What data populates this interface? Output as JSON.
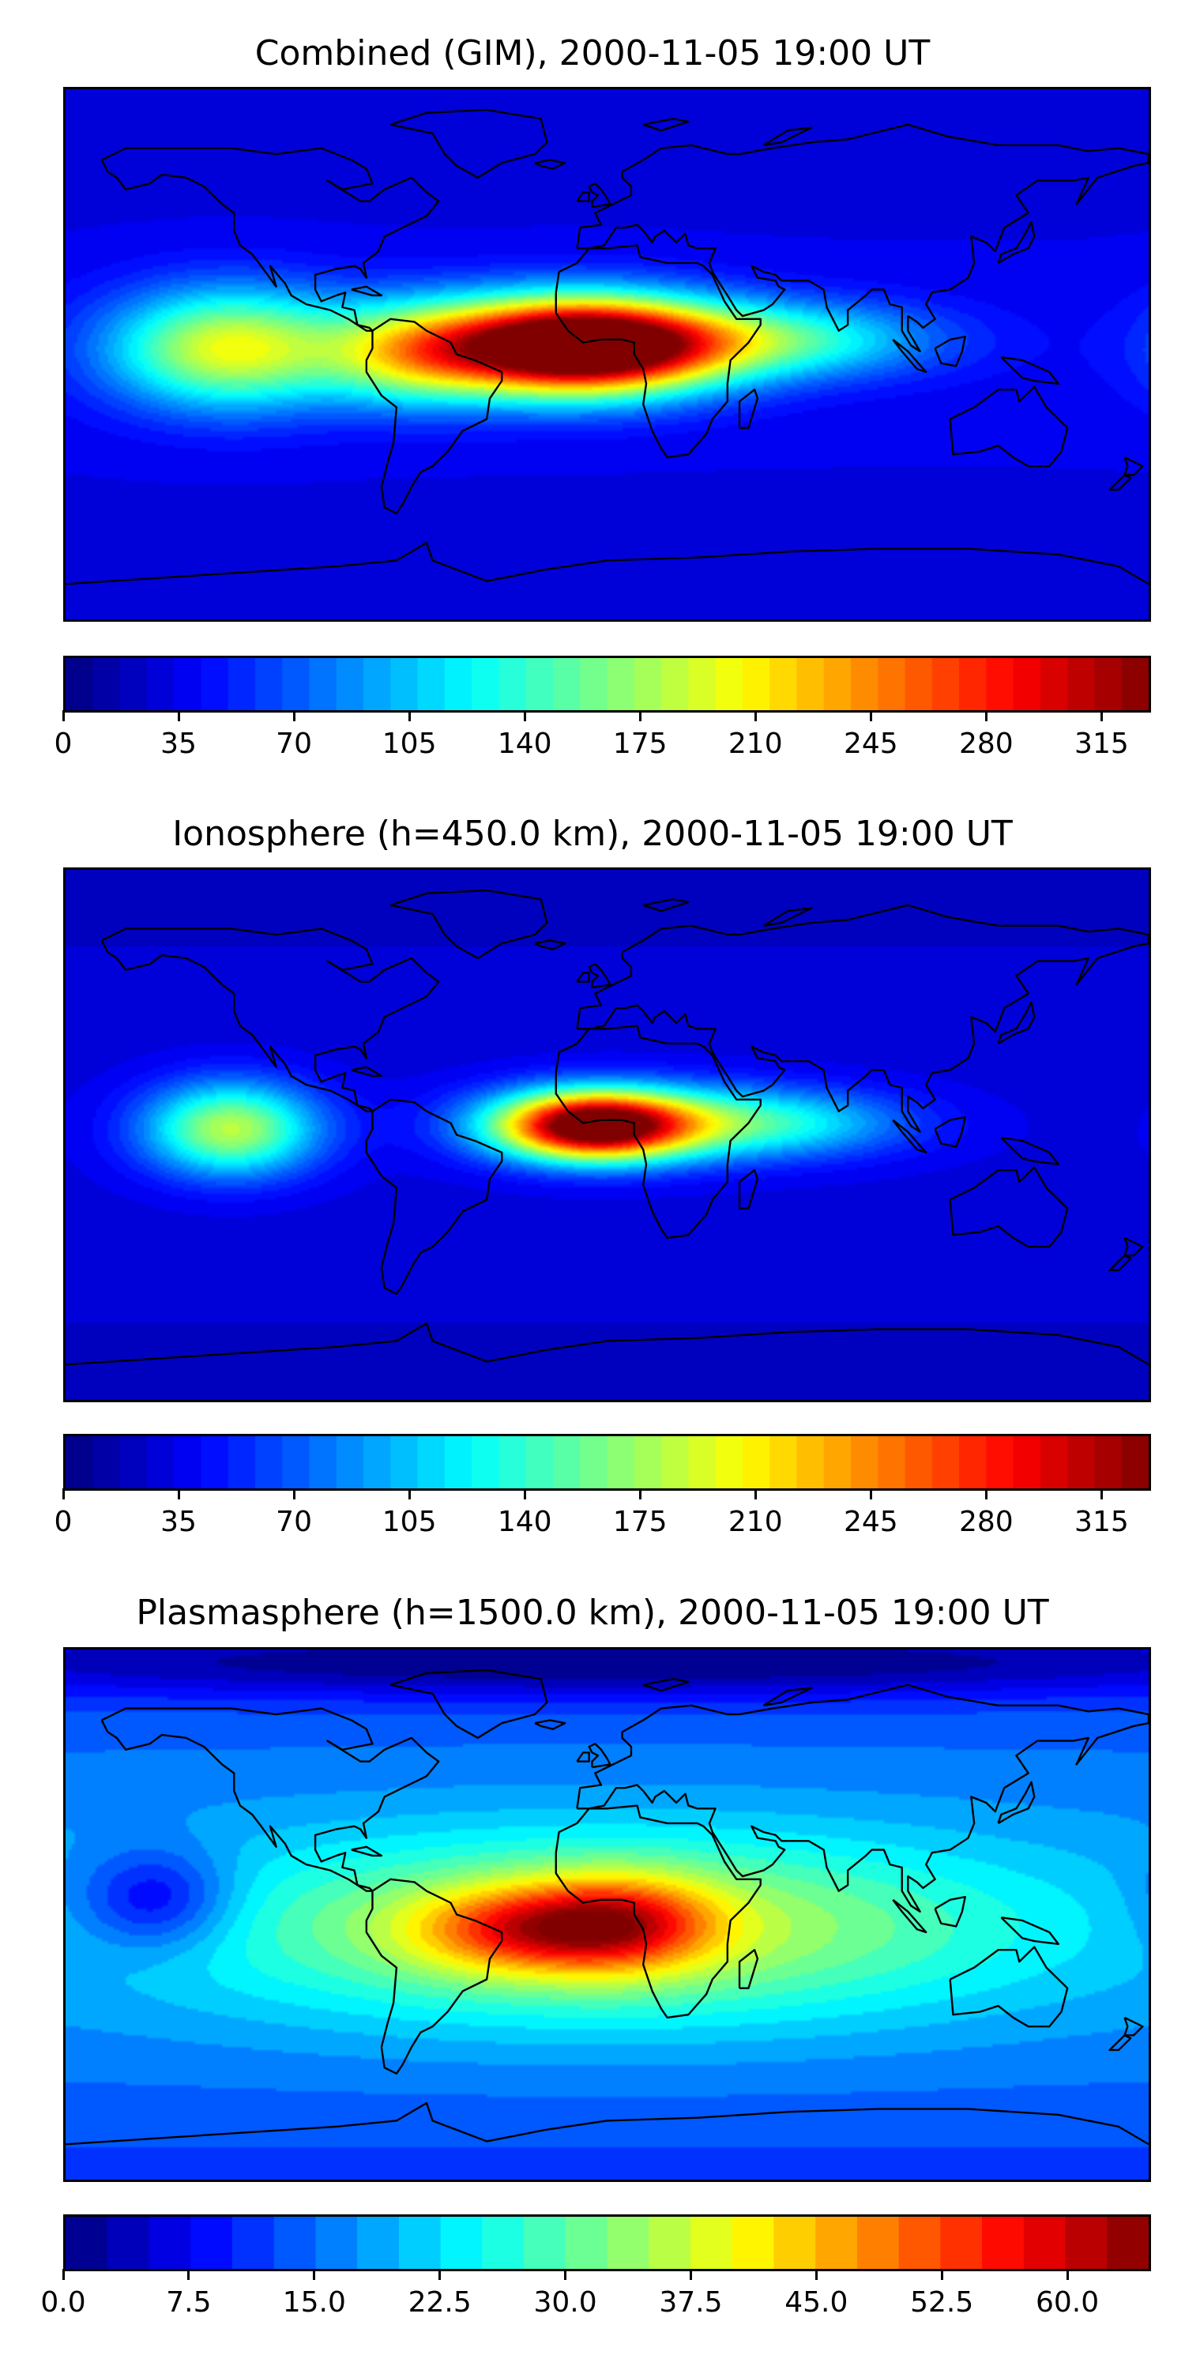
{
  "chart_data": [
    {
      "type": "heatmap",
      "title": "Combined (GIM), 2000-11-05 19:00 UT",
      "colormap": "jet",
      "vmin": 0,
      "vmax": 330,
      "colorbar_ticks": [
        "0",
        "35",
        "70",
        "105",
        "140",
        "175",
        "210",
        "245",
        "280",
        "315"
      ],
      "colorbar_tick_values": [
        0,
        35,
        70,
        105,
        140,
        175,
        210,
        245,
        280,
        315
      ],
      "levels": 40,
      "background_value": 30,
      "features": [
        {
          "region": "equatorial Africa (Gulf of Guinea)",
          "lon": -5,
          "lat": 3,
          "peak": 330,
          "spread_lon": 32,
          "spread_lat": 11
        },
        {
          "region": "equatorial Atlantic",
          "lon": -30,
          "lat": 2,
          "peak": 120,
          "spread_lon": 35,
          "spread_lat": 12
        },
        {
          "region": "equatorial East Pacific",
          "lon": -125,
          "lat": 2,
          "peak": 180,
          "spread_lon": 28,
          "spread_lat": 14
        },
        {
          "region": "South America equator",
          "lon": -65,
          "lat": 0,
          "peak": 110,
          "spread_lon": 20,
          "spread_lat": 12
        },
        {
          "region": "Indian Ocean",
          "lon": 60,
          "lat": 5,
          "peak": 110,
          "spread_lon": 35,
          "spread_lat": 9
        }
      ]
    },
    {
      "type": "heatmap",
      "title": "Ionosphere  (h=450.0 km), 2000-11-05 19:00 UT",
      "colormap": "jet",
      "vmin": 0,
      "vmax": 330,
      "colorbar_ticks": [
        "0",
        "35",
        "70",
        "105",
        "140",
        "175",
        "210",
        "245",
        "280",
        "315"
      ],
      "colorbar_tick_values": [
        0,
        35,
        70,
        105,
        140,
        175,
        210,
        245,
        280,
        315
      ],
      "levels": 40,
      "background_value": 25,
      "features": [
        {
          "region": "equatorial Africa (Gulf of Guinea)",
          "lon": -5,
          "lat": 3,
          "peak": 280,
          "spread_lon": 22,
          "spread_lat": 8
        },
        {
          "region": "equatorial Atlantic / Africa band",
          "lon": 10,
          "lat": 4,
          "peak": 110,
          "spread_lon": 35,
          "spread_lat": 9
        },
        {
          "region": "equatorial East Pacific",
          "lon": -125,
          "lat": 2,
          "peak": 165,
          "spread_lon": 20,
          "spread_lat": 11
        },
        {
          "region": "Indian Ocean",
          "lon": 60,
          "lat": 4,
          "peak": 85,
          "spread_lon": 30,
          "spread_lat": 8
        }
      ]
    },
    {
      "type": "heatmap",
      "title": "Plasmasphere (h=1500.0 km), 2000-11-05 19:00 UT",
      "colormap": "jet",
      "vmin": 0,
      "vmax": 65,
      "colorbar_ticks": [
        "0.0",
        "7.5",
        "15.0",
        "22.5",
        "30.0",
        "37.5",
        "45.0",
        "52.5",
        "60.0"
      ],
      "colorbar_tick_values": [
        0,
        7.5,
        15,
        22.5,
        30,
        37.5,
        45,
        52.5,
        60
      ],
      "levels": 26,
      "background_value": 12,
      "features": [
        {
          "region": "broad tropical band",
          "lon": 0,
          "lat": -5,
          "peak": 26,
          "spread_lon": 95,
          "spread_lat": 22
        },
        {
          "region": "central Africa",
          "lon": 5,
          "lat": -3,
          "peak": 28,
          "spread_lon": 22,
          "spread_lat": 11
        },
        {
          "region": "South Atlantic / Brazil",
          "lon": -30,
          "lat": -5,
          "peak": 25,
          "spread_lon": 25,
          "spread_lat": 10
        },
        {
          "region": "central Pacific low",
          "lon": -150,
          "lat": 5,
          "peak": -8,
          "spread_lon": 18,
          "spread_lat": 12
        },
        {
          "region": "Arctic low",
          "lon": 0,
          "lat": 85,
          "peak": -6,
          "spread_lon": 180,
          "spread_lat": 8
        }
      ]
    }
  ]
}
